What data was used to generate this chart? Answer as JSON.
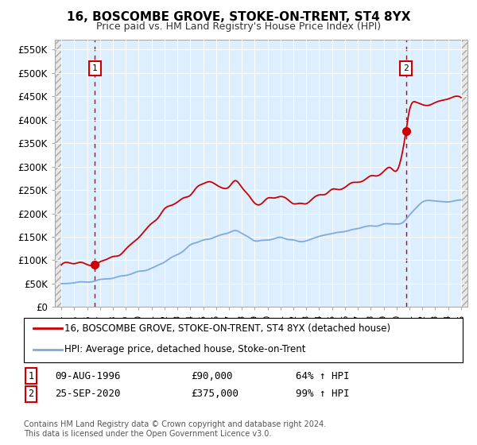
{
  "title": "16, BOSCOMBE GROVE, STOKE-ON-TRENT, ST4 8YX",
  "subtitle": "Price paid vs. HM Land Registry's House Price Index (HPI)",
  "legend_line1": "16, BOSCOMBE GROVE, STOKE-ON-TRENT, ST4 8YX (detached house)",
  "legend_line2": "HPI: Average price, detached house, Stoke-on-Trent",
  "annotation1_date": "09-AUG-1996",
  "annotation1_price": "£90,000",
  "annotation1_hpi": "64% ↑ HPI",
  "annotation2_date": "25-SEP-2020",
  "annotation2_price": "£375,000",
  "annotation2_hpi": "99% ↑ HPI",
  "footer": "Contains HM Land Registry data © Crown copyright and database right 2024.\nThis data is licensed under the Open Government Licence v3.0.",
  "ylim": [
    0,
    570000
  ],
  "yticks": [
    0,
    50000,
    100000,
    150000,
    200000,
    250000,
    300000,
    350000,
    400000,
    450000,
    500000,
    550000
  ],
  "xlim_start": 1993.5,
  "xlim_end": 2025.5,
  "red_line_color": "#cc0000",
  "blue_line_color": "#7faadd",
  "dashed_line_color": "#cc0000",
  "bg_plot_color": "#ddeeff",
  "point1_x": 1996.6,
  "point1_y": 90000,
  "point2_x": 2020.73,
  "point2_y": 375000,
  "hpi_x": [
    1994.0,
    1994.5,
    1995.0,
    1995.5,
    1996.0,
    1996.5,
    1997.0,
    1997.5,
    1998.0,
    1998.5,
    1999.0,
    1999.5,
    2000.0,
    2000.5,
    2001.0,
    2001.5,
    2002.0,
    2002.5,
    2003.0,
    2003.5,
    2004.0,
    2004.5,
    2005.0,
    2005.5,
    2006.0,
    2006.5,
    2007.0,
    2007.5,
    2008.0,
    2008.5,
    2009.0,
    2009.5,
    2010.0,
    2010.5,
    2011.0,
    2011.5,
    2012.0,
    2012.5,
    2013.0,
    2013.5,
    2014.0,
    2014.5,
    2015.0,
    2015.5,
    2016.0,
    2016.5,
    2017.0,
    2017.5,
    2018.0,
    2018.5,
    2019.0,
    2019.5,
    2020.0,
    2020.5,
    2021.0,
    2021.5,
    2022.0,
    2022.5,
    2023.0,
    2023.5,
    2024.0,
    2024.5,
    2025.0
  ],
  "hpi_y": [
    50000,
    50500,
    51000,
    52000,
    53500,
    55000,
    57000,
    59000,
    62000,
    65000,
    68000,
    72000,
    76000,
    80000,
    85000,
    90000,
    97000,
    105000,
    113000,
    122000,
    131000,
    138000,
    143000,
    147000,
    151000,
    155000,
    160000,
    163000,
    158000,
    150000,
    142000,
    140000,
    143000,
    147000,
    148000,
    146000,
    143000,
    142000,
    143000,
    146000,
    150000,
    154000,
    157000,
    160000,
    163000,
    166000,
    168000,
    170000,
    173000,
    175000,
    177000,
    178000,
    178000,
    180000,
    195000,
    210000,
    225000,
    228000,
    226000,
    224000,
    225000,
    227000,
    230000
  ],
  "red_x": [
    1994.0,
    1994.5,
    1995.0,
    1995.5,
    1996.0,
    1996.6,
    1997.0,
    1997.5,
    1998.0,
    1998.5,
    1999.0,
    1999.5,
    2000.0,
    2000.5,
    2001.0,
    2001.5,
    2002.0,
    2002.5,
    2003.0,
    2003.5,
    2004.0,
    2004.5,
    2005.0,
    2005.5,
    2006.0,
    2006.5,
    2007.0,
    2007.5,
    2008.0,
    2008.5,
    2009.0,
    2009.5,
    2010.0,
    2010.5,
    2011.0,
    2011.5,
    2012.0,
    2012.5,
    2013.0,
    2013.5,
    2014.0,
    2014.5,
    2015.0,
    2015.5,
    2016.0,
    2016.5,
    2017.0,
    2017.5,
    2018.0,
    2018.5,
    2019.0,
    2019.5,
    2020.0,
    2020.73,
    2021.0,
    2021.5,
    2022.0,
    2022.5,
    2023.0,
    2023.5,
    2024.0,
    2024.5,
    2025.0
  ],
  "red_y": [
    90000,
    91000,
    92000,
    93000,
    91000,
    90000,
    95000,
    100000,
    108000,
    115000,
    124000,
    135000,
    148000,
    163000,
    178000,
    193000,
    208000,
    218000,
    225000,
    232000,
    240000,
    255000,
    265000,
    268000,
    262000,
    255000,
    258000,
    270000,
    255000,
    238000,
    223000,
    220000,
    228000,
    232000,
    235000,
    230000,
    224000,
    222000,
    225000,
    230000,
    236000,
    242000,
    248000,
    253000,
    258000,
    264000,
    268000,
    272000,
    278000,
    282000,
    290000,
    298000,
    290000,
    375000,
    420000,
    440000,
    430000,
    425000,
    435000,
    440000,
    445000,
    450000,
    450000
  ]
}
